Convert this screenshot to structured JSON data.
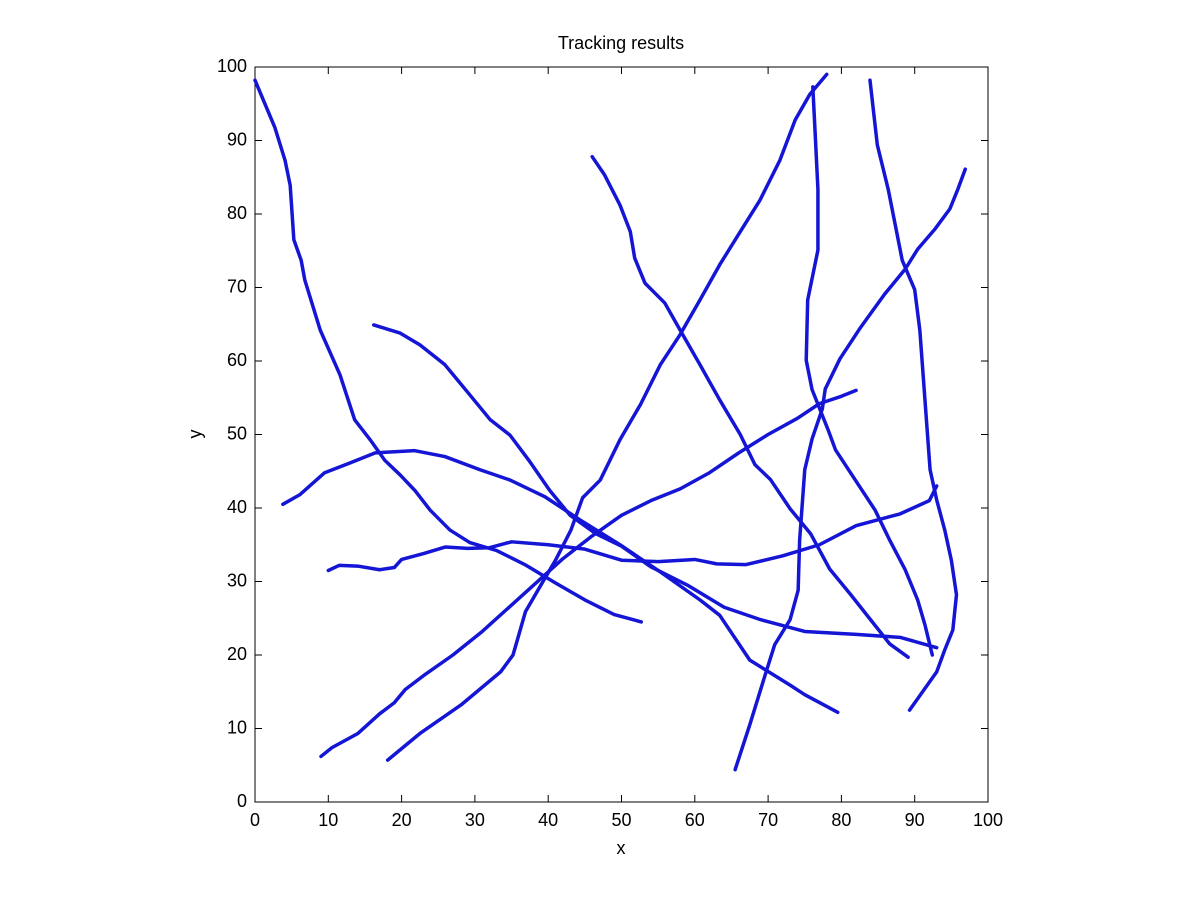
{
  "chart_data": {
    "type": "line",
    "title": "Tracking results",
    "x_label": "x",
    "y_label": "y",
    "color": "#1515d6",
    "xlim": [
      0,
      100
    ],
    "ylim": [
      0,
      100
    ],
    "xticks": [
      0,
      10,
      20,
      30,
      40,
      50,
      60,
      70,
      80,
      90,
      100
    ],
    "yticks": [
      0,
      10,
      20,
      30,
      40,
      50,
      60,
      70,
      80,
      90,
      100
    ],
    "grid": false,
    "series": [
      {
        "x": [
          0,
          2.7,
          4.1,
          4.8,
          5.3,
          6.3,
          6.8,
          8.9,
          11.6,
          13.6,
          15.7,
          17.7,
          19.8,
          21.8,
          23.9,
          26.6,
          29.3,
          33,
          37,
          41,
          45,
          49,
          52.7
        ],
        "values": [
          98.2,
          91.8,
          87.3,
          83.9,
          76.5,
          73.7,
          71,
          64.2,
          58.1,
          52,
          49.3,
          46.5,
          44.5,
          42.4,
          39.7,
          37,
          35.3,
          34.2,
          32.2,
          29.8,
          27.5,
          25.5,
          24.5
        ]
      },
      {
        "x": [
          46,
          47.7,
          49.8,
          51.2,
          51.8,
          53.2,
          55.9,
          58,
          60.7,
          63.4,
          66.2,
          68.2,
          70.3,
          73,
          75.8,
          78.4,
          81.2,
          83.9,
          86.6,
          89.1
        ],
        "values": [
          87.8,
          85.3,
          81.2,
          77.6,
          74,
          70.6,
          67.9,
          64.2,
          59.5,
          54.7,
          50,
          45.9,
          43.9,
          39.9,
          36.5,
          31.7,
          28.3,
          24.9,
          21.5,
          19.7
        ]
      },
      {
        "x": [
          18.1,
          22.6,
          28.1,
          33.5,
          35.2,
          36.9,
          39,
          41,
          43.1,
          44.7,
          47.1,
          49.8,
          52.6,
          55.3,
          58,
          60.7,
          63.4,
          66.2,
          68.9,
          71.6,
          73.7,
          75.7,
          78
        ],
        "values": [
          5.7,
          9.4,
          13.2,
          17.7,
          20,
          25.9,
          29.5,
          32.9,
          37,
          41.4,
          43.8,
          49.3,
          54.1,
          59.5,
          63.6,
          68.3,
          73.1,
          77.6,
          81.9,
          87.3,
          92.8,
          96.3,
          99
        ]
      },
      {
        "x": [
          65.5,
          67.5,
          69.6,
          70.9,
          73,
          74.1,
          74.3,
          75,
          76,
          77.4,
          77.8,
          79.8,
          82.5,
          85.9,
          88.7,
          90.4,
          92.8,
          94.8,
          95.9,
          96.9
        ],
        "values": [
          4.4,
          10.5,
          17.3,
          21.4,
          24.8,
          28.8,
          35.6,
          45.2,
          49.4,
          53.5,
          56.2,
          60.3,
          64.4,
          69.1,
          72.5,
          75.2,
          78,
          80.7,
          83.4,
          86.1
        ]
      },
      {
        "x": [
          76.1,
          76.4,
          76.8,
          76.8,
          75.4,
          75.2,
          76,
          78.2,
          79.2,
          81.9,
          84.6,
          86.6,
          88.7,
          90.4,
          91.4,
          92.4
        ],
        "values": [
          97.3,
          91.4,
          83.3,
          75.1,
          68.3,
          60.1,
          56.1,
          50.6,
          47.9,
          43.8,
          39.7,
          35.6,
          31.6,
          27.5,
          24.1,
          20
        ]
      },
      {
        "x": [
          83.9,
          84.9,
          86.4,
          88.3,
          90,
          90.7,
          91.4,
          92.1,
          93,
          94.1,
          95,
          95.7,
          95.2,
          94.1,
          93,
          89.3
        ],
        "values": [
          98.2,
          89.4,
          83.3,
          73.7,
          69.7,
          64.2,
          54.7,
          45.2,
          41.1,
          37,
          32.9,
          28.2,
          23.4,
          20.7,
          17.7,
          12.5
        ]
      },
      {
        "x": [
          3.8,
          6.1,
          9.5,
          12.9,
          16.4,
          21.8,
          25.9,
          30.7,
          34.8,
          39.6,
          44.3,
          49.8,
          55.3,
          60.7,
          63.4,
          67.5,
          73,
          75,
          79.5
        ],
        "values": [
          40.5,
          41.8,
          44.8,
          46.1,
          47.5,
          47.8,
          47,
          45.2,
          43.8,
          41.5,
          38.4,
          35,
          31.3,
          27.5,
          25.4,
          19.3,
          15.9,
          14.6,
          12.2
        ]
      },
      {
        "x": [
          16.2,
          19.8,
          22.5,
          25.9,
          29.3,
          32.1,
          34.8,
          37.5,
          40.2,
          43,
          46.5,
          50,
          54,
          59,
          64,
          69,
          75,
          82,
          88,
          93
        ],
        "values": [
          64.9,
          63.8,
          62.2,
          59.5,
          55.4,
          52,
          49.9,
          46.3,
          42.4,
          39,
          36.5,
          34.8,
          32,
          29.5,
          26.5,
          24.8,
          23.2,
          22.8,
          22.4,
          21
        ]
      },
      {
        "x": [
          10,
          11.5,
          14,
          17,
          19,
          20,
          23,
          26,
          29,
          32,
          35,
          40,
          45,
          50,
          55,
          60,
          63,
          67,
          72,
          77,
          82,
          88,
          92,
          93
        ],
        "values": [
          31.5,
          32.2,
          32.1,
          31.6,
          31.9,
          33,
          33.8,
          34.7,
          34.5,
          34.6,
          35.4,
          35,
          34.4,
          32.9,
          32.7,
          33,
          32.4,
          32.3,
          33.5,
          35,
          37.6,
          39.2,
          41,
          43
        ]
      },
      {
        "x": [
          9,
          10.5,
          14,
          17,
          19,
          20.5,
          23,
          27,
          31,
          35,
          38,
          42,
          46,
          50,
          54,
          58,
          62,
          66,
          70,
          74,
          77,
          80,
          82
        ],
        "values": [
          6.2,
          7.4,
          9.3,
          12,
          13.5,
          15.3,
          17.2,
          20,
          23.2,
          26.8,
          29.5,
          33.1,
          36.2,
          39,
          41,
          42.6,
          44.8,
          47.5,
          50,
          52.2,
          54.2,
          55.2,
          56
        ]
      }
    ]
  }
}
